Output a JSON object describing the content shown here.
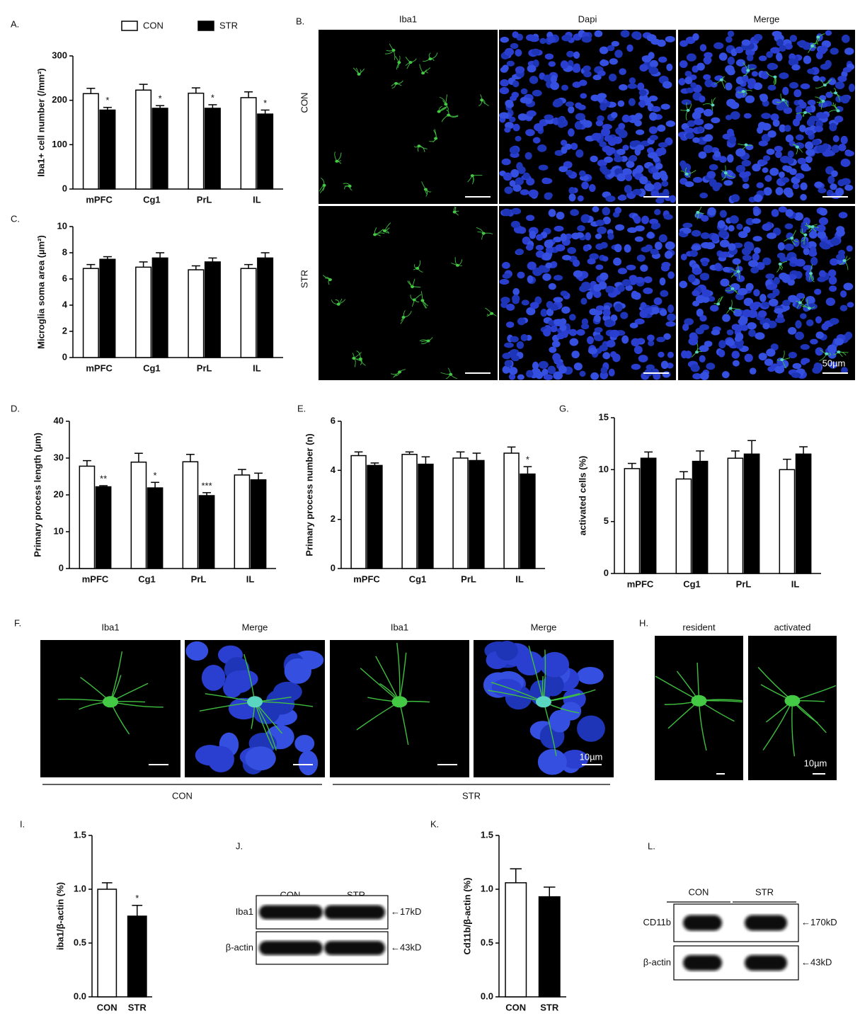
{
  "chart_data": [
    {
      "type": "bar",
      "panel": "A.",
      "ylabel": "Iba1+ cell number (/mm²)",
      "legend": true,
      "categories": [
        "mPFC",
        "Cg1",
        "PrL",
        "IL"
      ],
      "ylim": [
        0,
        300
      ],
      "yticks": [
        0,
        100,
        200,
        300
      ],
      "series": [
        {
          "name": "CON",
          "color": "#ffffff",
          "values": [
            215,
            223,
            216,
            206
          ],
          "errors": [
            12,
            13,
            12,
            13
          ]
        },
        {
          "name": "STR",
          "color": "#000000",
          "values": [
            178,
            182,
            182,
            169
          ],
          "errors": [
            6,
            6,
            8,
            9
          ],
          "annotations": [
            "*",
            "*",
            "*",
            "*"
          ]
        }
      ]
    },
    {
      "type": "bar",
      "panel": "C.",
      "ylabel": "Microglia soma area (µm²)",
      "categories": [
        "mPFC",
        "Cg1",
        "PrL",
        "IL"
      ],
      "ylim": [
        0,
        10
      ],
      "yticks": [
        0,
        2,
        4,
        6,
        8,
        10
      ],
      "series": [
        {
          "color": "#ffffff",
          "values": [
            6.8,
            6.9,
            6.7,
            6.8
          ],
          "errors": [
            0.3,
            0.4,
            0.3,
            0.3
          ]
        },
        {
          "color": "#000000",
          "values": [
            7.5,
            7.6,
            7.3,
            7.6
          ],
          "errors": [
            0.2,
            0.4,
            0.3,
            0.4
          ]
        }
      ]
    },
    {
      "type": "bar",
      "panel": "D.",
      "ylabel": "Primary process length (µm)",
      "categories": [
        "mPFC",
        "Cg1",
        "PrL",
        "IL"
      ],
      "ylim": [
        0,
        40
      ],
      "yticks": [
        0,
        10,
        20,
        30,
        40
      ],
      "series": [
        {
          "color": "#ffffff",
          "values": [
            27.8,
            28.9,
            29.0,
            25.4
          ],
          "errors": [
            1.5,
            2.4,
            2.0,
            1.5
          ]
        },
        {
          "color": "#000000",
          "values": [
            22.2,
            21.9,
            19.8,
            24.1
          ],
          "errors": [
            0.3,
            1.5,
            0.8,
            1.8
          ],
          "annotations": [
            "**",
            "*",
            "***",
            null
          ]
        }
      ]
    },
    {
      "type": "bar",
      "panel": "E.",
      "ylabel": "Primary process number (n)",
      "categories": [
        "mPFC",
        "Cg1",
        "PrL",
        "IL"
      ],
      "ylim": [
        0,
        6
      ],
      "yticks": [
        0,
        2,
        4,
        6
      ],
      "series": [
        {
          "color": "#ffffff",
          "values": [
            4.6,
            4.65,
            4.5,
            4.7
          ],
          "errors": [
            0.15,
            0.1,
            0.25,
            0.25
          ]
        },
        {
          "color": "#000000",
          "values": [
            4.2,
            4.25,
            4.4,
            3.85
          ],
          "errors": [
            0.1,
            0.3,
            0.3,
            0.3
          ],
          "annotations": [
            null,
            null,
            null,
            "*"
          ]
        }
      ]
    },
    {
      "type": "bar",
      "panel": "G.",
      "ylabel": "activated cells (%)",
      "categories": [
        "mPFC",
        "Cg1",
        "PrL",
        "IL"
      ],
      "ylim": [
        0,
        15
      ],
      "yticks": [
        0,
        5,
        10,
        15
      ],
      "series": [
        {
          "color": "#ffffff",
          "values": [
            10.1,
            9.1,
            11.1,
            10.0
          ],
          "errors": [
            0.5,
            0.7,
            0.7,
            1.0
          ]
        },
        {
          "color": "#000000",
          "values": [
            11.1,
            10.8,
            11.5,
            11.5
          ],
          "errors": [
            0.6,
            1.0,
            1.3,
            0.7
          ]
        }
      ]
    },
    {
      "type": "bar",
      "panel": "I.",
      "ylabel": "iba1/β-actin (%)",
      "categories": [
        "CON",
        "STR"
      ],
      "ylim": [
        0,
        1.5
      ],
      "yticks": [
        {
          "value": 0,
          "label": "0.0"
        },
        0.5,
        {
          "value": 1,
          "label": "1.0"
        },
        1.5
      ],
      "series": [
        {
          "colors": [
            "#ffffff",
            "#000000"
          ],
          "values": [
            1.0,
            0.75
          ],
          "errors": [
            0.06,
            0.1
          ],
          "annotations": [
            null,
            "*"
          ]
        }
      ]
    },
    {
      "type": "bar",
      "panel": "K.",
      "ylabel": "Cd11b/β-actin (%)",
      "categories": [
        "CON",
        "STR"
      ],
      "ylim": [
        0,
        1.5
      ],
      "yticks": [
        {
          "value": 0,
          "label": "0.0"
        },
        0.5,
        {
          "value": 1,
          "label": "1.0"
        },
        1.5
      ],
      "series": [
        {
          "colors": [
            "#ffffff",
            "#000000"
          ],
          "values": [
            1.06,
            0.93
          ],
          "errors": [
            0.13,
            0.09
          ]
        }
      ]
    }
  ],
  "figures": {
    "B": {
      "label": "B.",
      "columns": [
        "Iba1",
        "Dapi",
        "Merge"
      ],
      "rows": [
        "CON",
        "STR"
      ],
      "scale": "50µm"
    },
    "F": {
      "label": "F.",
      "columns": [
        "Iba1",
        "Merge",
        "Iba1",
        "Merge"
      ],
      "groups": [
        "CON",
        "STR"
      ],
      "scale": "10µm"
    },
    "H": {
      "label": "H.",
      "columns": [
        "resident",
        "activated"
      ],
      "scale": "10µm"
    },
    "J": {
      "label": "J.",
      "lanes": [
        "CON",
        "STR"
      ],
      "bands": [
        "Iba1",
        "β-actin"
      ],
      "sizes": [
        "←17kD",
        "←43kD"
      ]
    },
    "L": {
      "label": "L.",
      "lanes": [
        "CON",
        "STR"
      ],
      "bands": [
        "CD11b",
        "β-actin"
      ],
      "sizes": [
        "←170kD",
        "←43kD"
      ]
    }
  }
}
